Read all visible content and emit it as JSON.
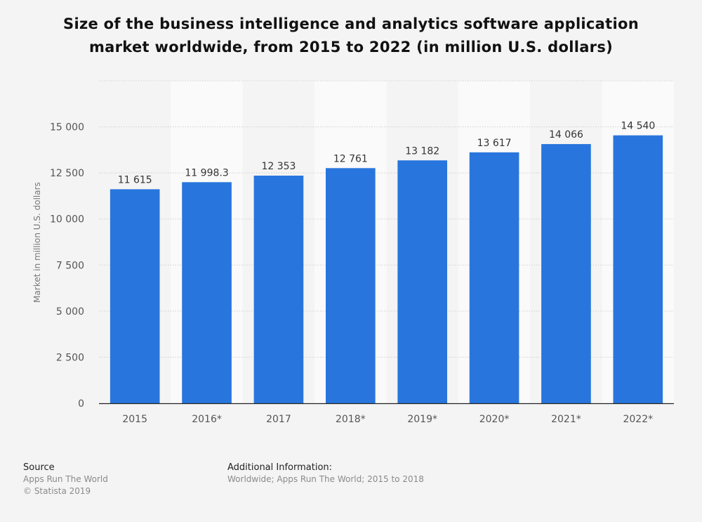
{
  "title": {
    "line1": "Size of the business intelligence and analytics software application",
    "line2": "market worldwide, from 2015 to 2022 (in million U.S. dollars)"
  },
  "chart_data": {
    "type": "bar",
    "categories": [
      "2015",
      "2016*",
      "2017",
      "2018*",
      "2019*",
      "2020*",
      "2021*",
      "2022*"
    ],
    "values": [
      11615,
      11998.3,
      12353,
      12761,
      13182,
      13617,
      14066,
      14540
    ],
    "value_labels": [
      "11 615",
      "11 998.3",
      "12 353",
      "12 761",
      "13 182",
      "13 617",
      "14 066",
      "14 540"
    ],
    "xlabel": "",
    "ylabel": "Market in million U.S. dollars",
    "ylim": [
      0,
      17500
    ],
    "yticks": [
      0,
      2500,
      5000,
      7500,
      10000,
      12500,
      15000
    ],
    "ytick_labels": [
      "0",
      "2 500",
      "5 000",
      "7 500",
      "10 000",
      "12 500",
      "15 000"
    ],
    "grid": true,
    "bar_color": "#2876dd"
  },
  "footer": {
    "source_heading": "Source",
    "source_lines": [
      "Apps Run The World",
      "© Statista 2019"
    ],
    "info_heading": "Additional Information:",
    "info_lines": [
      "Worldwide; Apps Run The World; 2015 to 2018"
    ]
  }
}
